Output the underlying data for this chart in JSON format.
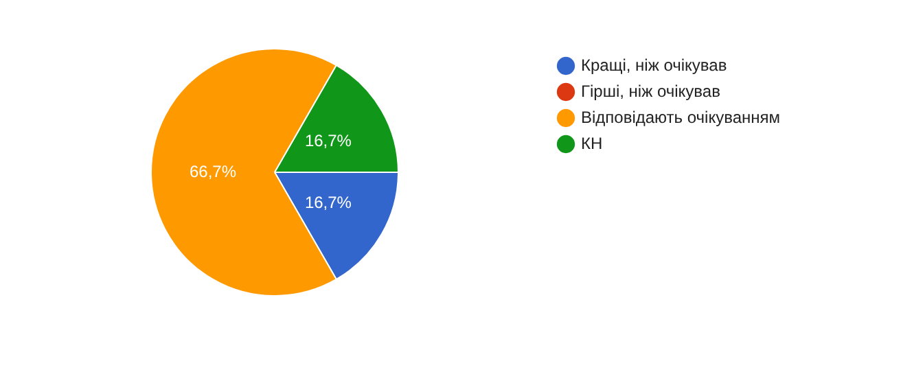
{
  "chart_data": {
    "type": "pie",
    "categories": [
      "Кращі, ніж очікував",
      "Гірші, ніж очікував",
      "Відповідають очікуванням",
      "КН"
    ],
    "values": [
      16.7,
      0,
      66.7,
      16.7
    ],
    "colors": [
      "#3366cc",
      "#dc3912",
      "#ff9900",
      "#109618"
    ],
    "value_labels": [
      "16,7%",
      null,
      "66,7%",
      "16,7%"
    ],
    "legend": "right"
  }
}
